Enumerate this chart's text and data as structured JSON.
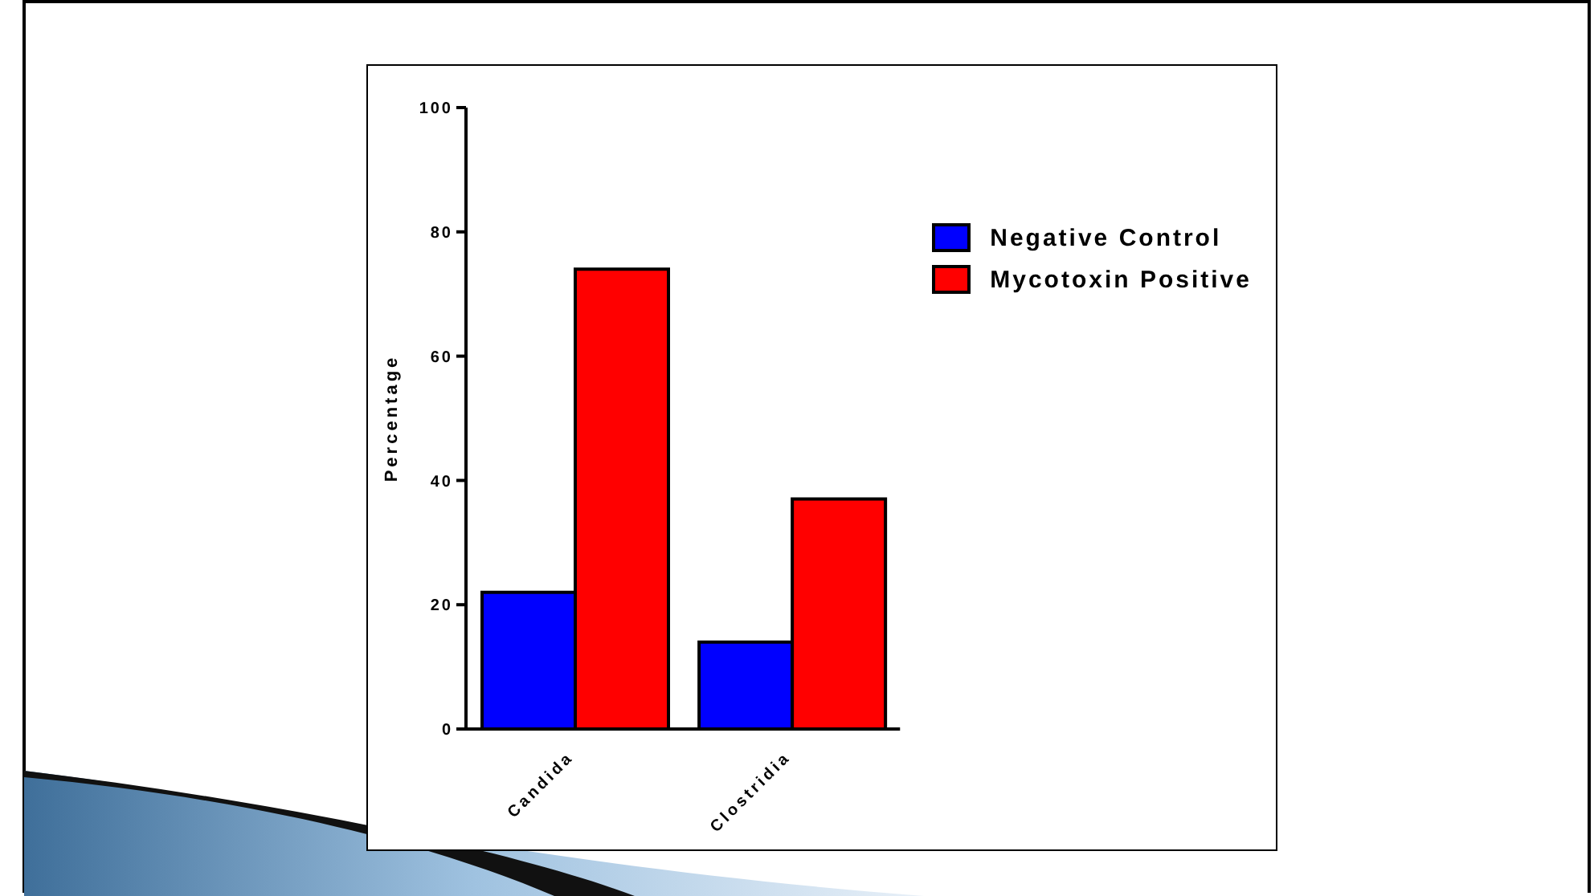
{
  "chart_data": {
    "type": "bar",
    "ylabel": "Percentage",
    "categories": [
      "Candida",
      "Clostridia"
    ],
    "series": [
      {
        "name": "Negative Control",
        "color": "#0000ff",
        "values": [
          22,
          14
        ]
      },
      {
        "name": "Mycotoxin Positive",
        "color": "#ff0000",
        "values": [
          74,
          37
        ]
      }
    ],
    "ylim": [
      0,
      100
    ],
    "yticks": [
      0,
      20,
      40,
      60,
      80,
      100
    ],
    "grid": false,
    "legend": "top right"
  }
}
